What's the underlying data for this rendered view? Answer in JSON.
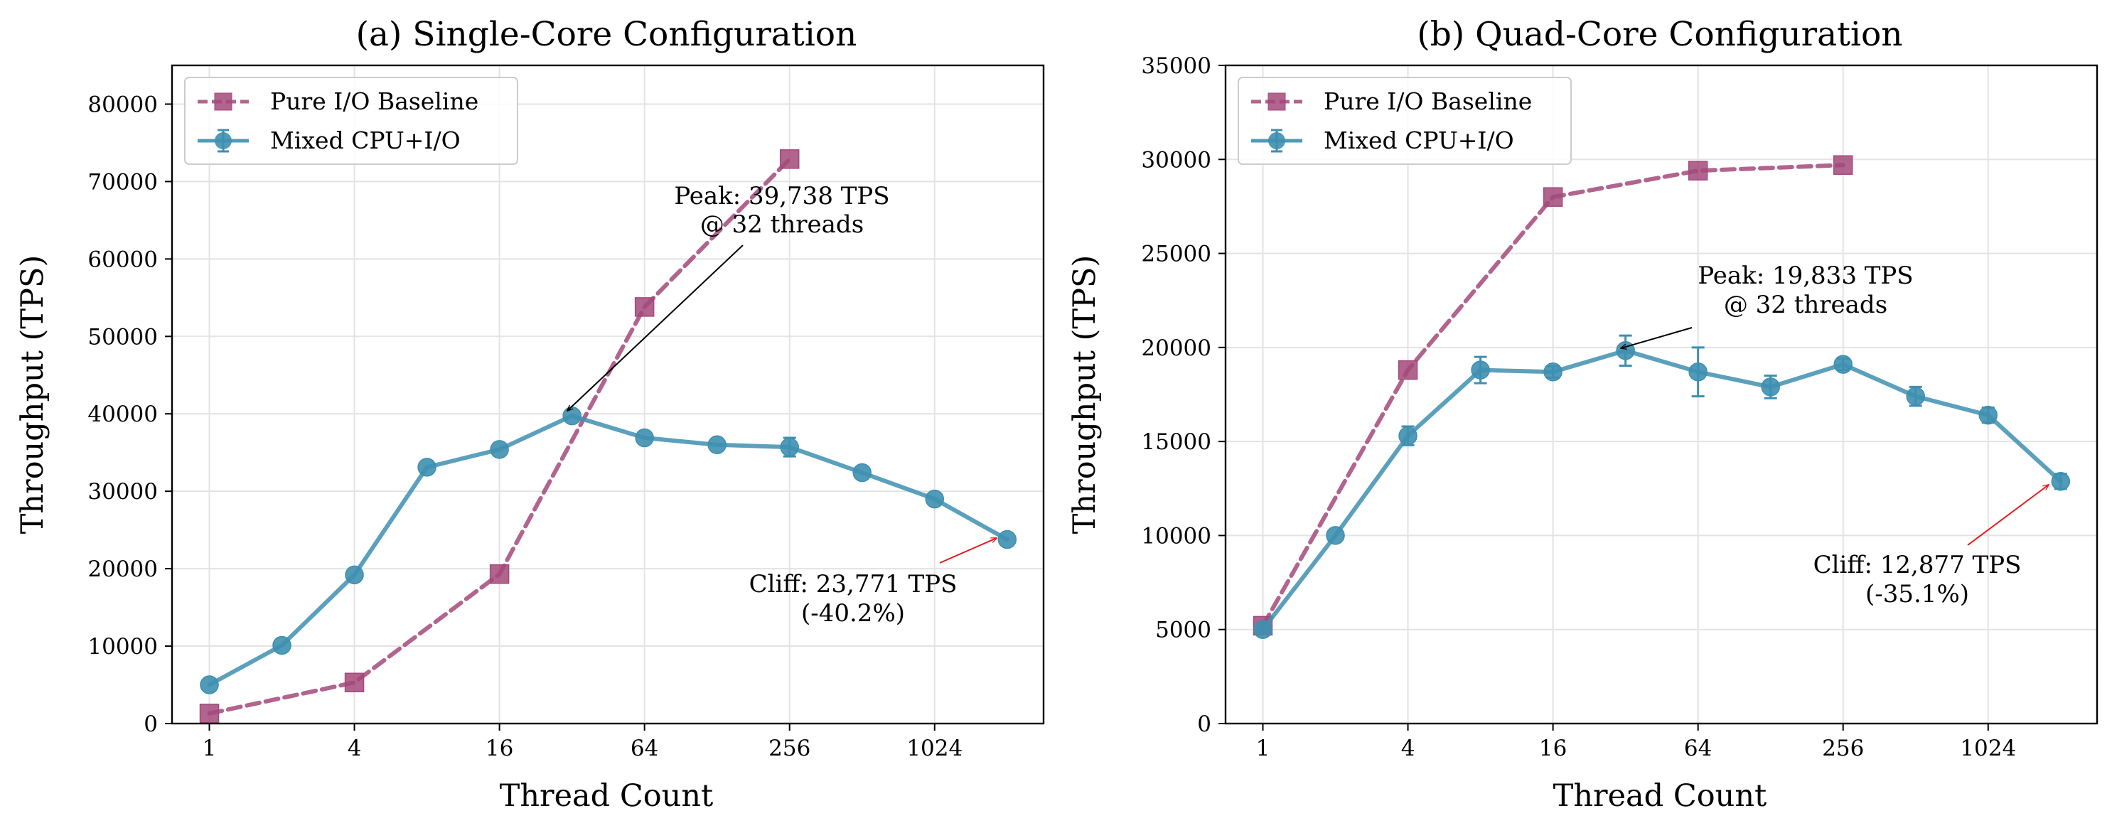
{
  "chart_data": [
    {
      "type": "line",
      "title": "(a) Single-Core Configuration",
      "xlabel": "Thread Count",
      "ylabel": "Throughput (TPS)",
      "xscale": "log2",
      "xticks": [
        1,
        4,
        16,
        64,
        256,
        1024
      ],
      "xtick_labels": [
        "1",
        "4",
        "16",
        "64",
        "256",
        "1024"
      ],
      "ylim": [
        0,
        85000
      ],
      "yticks": [
        0,
        10000,
        20000,
        30000,
        40000,
        50000,
        60000,
        70000,
        80000
      ],
      "ytick_labels": [
        "0",
        "10000",
        "20000",
        "30000",
        "40000",
        "50000",
        "60000",
        "70000",
        "80000"
      ],
      "grid": true,
      "legend_position": "top-left",
      "series": [
        {
          "name": "Pure I/O Baseline",
          "style": "dashed",
          "marker": "square",
          "color": "#a3497a",
          "x": [
            1,
            4,
            16,
            64,
            256
          ],
          "values": [
            1300,
            5300,
            19300,
            53800,
            72900
          ]
        },
        {
          "name": "Mixed CPU+I/O",
          "style": "solid",
          "marker": "circle",
          "color": "#3e8fb0",
          "x": [
            1,
            2,
            4,
            8,
            16,
            32,
            64,
            128,
            256,
            512,
            1024,
            2048
          ],
          "values": [
            5000,
            10100,
            19200,
            33100,
            35400,
            39738,
            36900,
            36000,
            35700,
            32400,
            29000,
            23771
          ],
          "errors": [
            0,
            0,
            0,
            0,
            0,
            0,
            0,
            0,
            1200,
            0,
            0,
            0
          ]
        }
      ],
      "annotations": [
        {
          "lines": [
            "Peak: 39,738 TPS",
            "@ 32 threads"
          ],
          "target_x": 32,
          "target_y": 39738,
          "color": "#000000"
        },
        {
          "lines": [
            "Cliff: 23,771 TPS",
            "(-40.2%)"
          ],
          "target_x": 2048,
          "target_y": 23771,
          "color": "#e31a1c"
        }
      ]
    },
    {
      "type": "line",
      "title": "(b) Quad-Core Configuration",
      "xlabel": "Thread Count",
      "ylabel": "Throughput (TPS)",
      "xscale": "log2",
      "xticks": [
        1,
        4,
        16,
        64,
        256,
        1024
      ],
      "xtick_labels": [
        "1",
        "4",
        "16",
        "64",
        "256",
        "1024"
      ],
      "ylim": [
        0,
        35000
      ],
      "yticks": [
        0,
        5000,
        10000,
        15000,
        20000,
        25000,
        30000,
        35000
      ],
      "ytick_labels": [
        "0",
        "5000",
        "10000",
        "15000",
        "20000",
        "25000",
        "30000",
        "35000"
      ],
      "grid": true,
      "legend_position": "top-left",
      "series": [
        {
          "name": "Pure I/O Baseline",
          "style": "dashed",
          "marker": "square",
          "color": "#a3497a",
          "x": [
            1,
            4,
            16,
            64,
            256
          ],
          "values": [
            5200,
            18800,
            28000,
            29400,
            29700
          ]
        },
        {
          "name": "Mixed CPU+I/O",
          "style": "solid",
          "marker": "circle",
          "color": "#3e8fb0",
          "x": [
            1,
            2,
            4,
            8,
            16,
            32,
            64,
            128,
            256,
            512,
            1024,
            2048
          ],
          "values": [
            5000,
            10000,
            15300,
            18800,
            18700,
            19833,
            18700,
            17900,
            19100,
            17400,
            16400,
            12877
          ],
          "errors": [
            0,
            0,
            500,
            700,
            300,
            800,
            1300,
            600,
            300,
            500,
            400,
            400
          ]
        }
      ],
      "annotations": [
        {
          "lines": [
            "Peak: 19,833 TPS",
            "@ 32 threads"
          ],
          "target_x": 32,
          "target_y": 19833,
          "color": "#000000"
        },
        {
          "lines": [
            "Cliff: 12,877 TPS",
            "(-35.1%)"
          ],
          "target_x": 2048,
          "target_y": 12877,
          "color": "#e31a1c"
        }
      ]
    }
  ]
}
